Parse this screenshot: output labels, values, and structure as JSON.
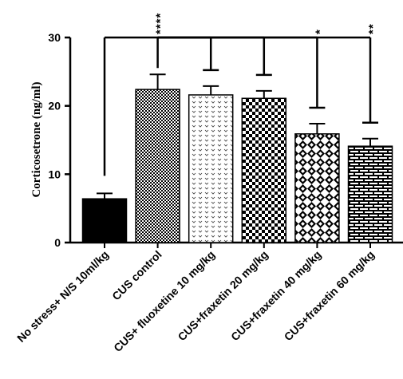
{
  "chart_data": {
    "type": "bar",
    "title": "",
    "xlabel": "",
    "ylabel": "Corticosetrone (ng/ml)",
    "ylim": [
      0,
      30
    ],
    "yticks": [
      "0",
      "10",
      "20",
      "30"
    ],
    "grid": false,
    "categories": [
      "No stress+ N/S 10ml/kg",
      "CUS control",
      "CUS+ fluoxetine 10 mg/kg",
      "CUS+fraxetin 20 mg/kg",
      "CUS+fraxetin 40 mg/kg",
      "CUS+fraxetin 60 mg/kg"
    ],
    "values": [
      6.4,
      22.4,
      21.6,
      21.1,
      15.9,
      14.1
    ],
    "errors": [
      0.8,
      2.2,
      1.3,
      1.1,
      1.5,
      1.1
    ],
    "patterns": [
      "solid",
      "grid",
      "chevron",
      "dots",
      "diamond",
      "brick"
    ],
    "comparisons": [
      {
        "from": 0,
        "to": 1,
        "stars": "****",
        "bracket_y": 30.0
      },
      {
        "from": 1,
        "to": 2,
        "stars": "",
        "bracket_y": 30.0
      },
      {
        "from": 1,
        "to": 3,
        "stars": "",
        "bracket_y": 30.0
      },
      {
        "from": 1,
        "to": 4,
        "stars": "*",
        "bracket_y": 30.0
      },
      {
        "from": 1,
        "to": 5,
        "stars": "**",
        "bracket_y": 30.0
      }
    ]
  }
}
